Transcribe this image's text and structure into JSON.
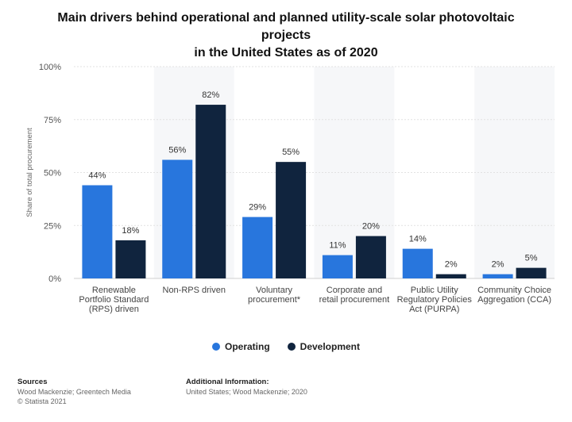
{
  "title": {
    "line1": "Main drivers behind operational and planned utility-scale solar photovoltaic projects",
    "line2": "in the United States as of 2020"
  },
  "chart_data": {
    "type": "bar",
    "categories": [
      [
        "Renewable",
        "Portfolio Standard",
        "(RPS) driven"
      ],
      [
        "Non-RPS driven"
      ],
      [
        "Voluntary",
        "procurement*"
      ],
      [
        "Corporate and",
        "retail procurement"
      ],
      [
        "Public Utility",
        "Regulatory Policies",
        "Act (PURPA)"
      ],
      [
        "Community Choice",
        "Aggregation (CCA)"
      ]
    ],
    "series": [
      {
        "name": "Operating",
        "color": "#2876dd",
        "values": [
          44,
          56,
          29,
          11,
          14,
          2
        ],
        "labels": [
          "44%",
          "56%",
          "29%",
          "11%",
          "14%",
          "2%"
        ]
      },
      {
        "name": "Development",
        "color": "#10243e",
        "values": [
          18,
          82,
          55,
          20,
          2,
          5
        ],
        "labels": [
          "18%",
          "82%",
          "55%",
          "20%",
          "2%",
          "5%"
        ]
      }
    ],
    "ylabel": "Share of total procurement",
    "ylim": [
      0,
      100
    ],
    "yticks": [
      {
        "value": 0,
        "label": "0%"
      },
      {
        "value": 25,
        "label": "25%"
      },
      {
        "value": 50,
        "label": "50%"
      },
      {
        "value": 75,
        "label": "75%"
      },
      {
        "value": 100,
        "label": "100%"
      }
    ],
    "grid": true,
    "legend_position": "bottom"
  },
  "footer": {
    "sources_header": "Sources",
    "sources_text": "Wood Mackenzie; Greentech Media",
    "copyright": "© Statista 2021",
    "additional_header": "Additional Information:",
    "additional_text": "United States; Wood Mackenzie; 2020"
  }
}
